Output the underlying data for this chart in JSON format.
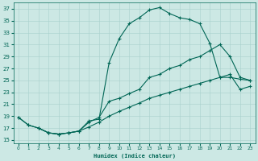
{
  "xlabel": "Humidex (Indice chaleur)",
  "bg_color": "#cce8e4",
  "grid_color": "#a8d0cc",
  "line_color": "#006655",
  "xlim": [
    -0.5,
    23.5
  ],
  "ylim": [
    14.5,
    38.0
  ],
  "yticks": [
    15,
    17,
    19,
    21,
    23,
    25,
    27,
    29,
    31,
    33,
    35,
    37
  ],
  "xticks": [
    0,
    1,
    2,
    3,
    4,
    5,
    6,
    7,
    8,
    9,
    10,
    11,
    12,
    13,
    14,
    15,
    16,
    17,
    18,
    19,
    20,
    21,
    22,
    23
  ],
  "curve1_x": [
    0,
    1,
    2,
    3,
    4,
    5,
    6,
    7,
    8,
    9,
    10,
    11,
    12,
    13,
    14,
    15,
    16,
    17,
    18,
    19,
    20,
    21,
    22,
    23
  ],
  "curve1_y": [
    18.8,
    17.5,
    17.0,
    16.2,
    16.0,
    16.2,
    16.5,
    18.2,
    18.5,
    28.0,
    32.0,
    34.5,
    35.5,
    36.8,
    37.2,
    36.2,
    35.5,
    35.2,
    34.5,
    31.2,
    25.5,
    25.5,
    25.2,
    25.0
  ],
  "curve2_x": [
    0,
    1,
    2,
    3,
    4,
    5,
    6,
    7,
    8,
    9,
    10,
    11,
    12,
    13,
    14,
    15,
    16,
    17,
    18,
    19,
    20,
    21,
    22,
    23
  ],
  "curve2_y": [
    18.8,
    17.5,
    17.0,
    16.2,
    16.0,
    16.2,
    16.5,
    18.0,
    18.8,
    21.5,
    22.0,
    22.8,
    23.5,
    25.5,
    26.0,
    27.0,
    27.5,
    28.5,
    29.0,
    30.0,
    31.0,
    29.0,
    25.5,
    25.0
  ],
  "curve3_x": [
    2,
    3,
    4,
    5,
    6,
    7,
    8,
    9,
    10,
    11,
    12,
    13,
    14,
    15,
    16,
    17,
    18,
    19,
    20,
    21,
    22,
    23
  ],
  "curve3_y": [
    17.0,
    16.2,
    16.0,
    16.2,
    16.5,
    17.2,
    18.0,
    19.0,
    19.8,
    20.5,
    21.2,
    22.0,
    22.5,
    23.0,
    23.5,
    24.0,
    24.5,
    25.0,
    25.5,
    26.0,
    23.5,
    24.0
  ]
}
